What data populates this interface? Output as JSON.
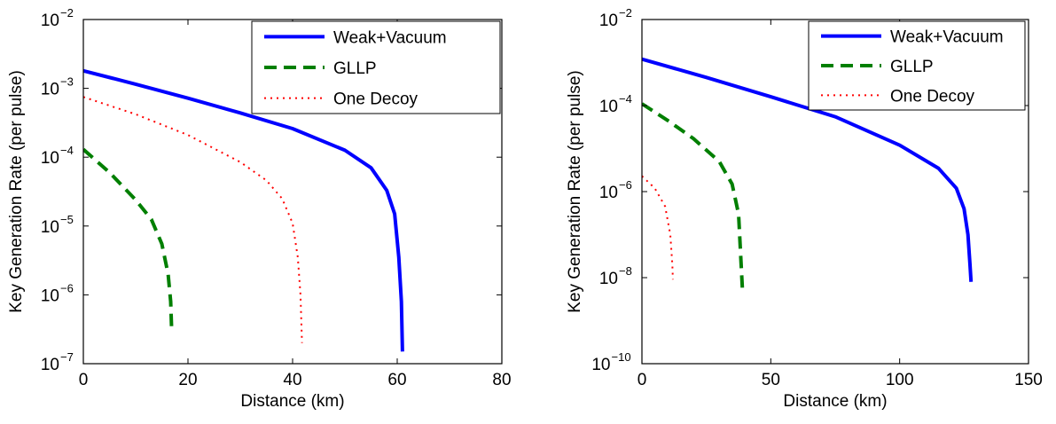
{
  "chart_data": [
    {
      "type": "line",
      "xlabel": "Distance (km)",
      "ylabel": "Key Generation Rate (per pulse)",
      "xlim": [
        0,
        80
      ],
      "ylim": [
        1e-07,
        0.01
      ],
      "yscale": "log",
      "grid": false,
      "legend_placement": "top-right",
      "x_ticks": [
        {
          "value": 0,
          "label": "0"
        },
        {
          "value": 20,
          "label": "20"
        },
        {
          "value": 40,
          "label": "40"
        },
        {
          "value": 60,
          "label": "60"
        },
        {
          "value": 80,
          "label": "80"
        }
      ],
      "y_ticks": [
        {
          "value": 1e-07,
          "base": "10",
          "exp": "−7"
        },
        {
          "value": 1e-06,
          "base": "10",
          "exp": "−6"
        },
        {
          "value": 1e-05,
          "base": "10",
          "exp": "−5"
        },
        {
          "value": 0.0001,
          "base": "10",
          "exp": "−4"
        },
        {
          "value": 0.001,
          "base": "10",
          "exp": "−3"
        },
        {
          "value": 0.01,
          "base": "10",
          "exp": "−2"
        }
      ],
      "series": [
        {
          "name": "Weak+Vacuum",
          "color": "#0000ff",
          "style": "solid",
          "x": [
            0,
            10,
            20,
            30,
            40,
            50,
            55,
            58,
            59.5,
            60.3,
            60.8,
            61
          ],
          "y": [
            0.0018,
            0.00115,
            0.00072,
            0.00044,
            0.00026,
            0.000126,
            7e-05,
            3.3e-05,
            1.5e-05,
            3.5e-06,
            8e-07,
            1.5e-07
          ]
        },
        {
          "name": "GLLP",
          "color": "#007f00",
          "style": "dashed",
          "x": [
            0,
            5,
            10,
            13,
            15,
            16.2,
            16.7,
            16.9
          ],
          "y": [
            0.00013,
            6e-05,
            2.4e-05,
            1.25e-05,
            5.5e-06,
            2e-06,
            8e-07,
            2.8e-07
          ]
        },
        {
          "name": "One Decoy",
          "color": "#ff0000",
          "style": "dotted",
          "x": [
            0,
            10,
            20,
            30,
            35,
            38,
            40,
            41,
            41.5,
            41.8
          ],
          "y": [
            0.00075,
            0.00042,
            0.00021,
            8.5e-05,
            4.6e-05,
            2.5e-05,
            1.1e-05,
            3.5e-06,
            1e-06,
            2e-07
          ]
        }
      ]
    },
    {
      "type": "line",
      "xlabel": "Distance (km)",
      "ylabel": "Key Generation Rate (per pulse)",
      "xlim": [
        0,
        150
      ],
      "ylim": [
        1e-10,
        0.01
      ],
      "yscale": "log",
      "grid": false,
      "legend_placement": "top-right",
      "x_ticks": [
        {
          "value": 0,
          "label": "0"
        },
        {
          "value": 50,
          "label": "50"
        },
        {
          "value": 100,
          "label": "100"
        },
        {
          "value": 150,
          "label": "150"
        }
      ],
      "y_ticks": [
        {
          "value": 1e-10,
          "base": "10",
          "exp": "−10"
        },
        {
          "value": 1e-08,
          "base": "10",
          "exp": "−8"
        },
        {
          "value": 1e-06,
          "base": "10",
          "exp": "−6"
        },
        {
          "value": 0.0001,
          "base": "10",
          "exp": "−4"
        },
        {
          "value": 0.01,
          "base": "10",
          "exp": "−2"
        }
      ],
      "series": [
        {
          "name": "Weak+Vacuum",
          "color": "#0000ff",
          "style": "solid",
          "x": [
            0,
            25,
            50,
            75,
            100,
            115,
            122,
            125,
            126.5,
            127.3,
            127.7
          ],
          "y": [
            0.0012,
            0.00045,
            0.00016,
            5.5e-05,
            1.2e-05,
            3.5e-06,
            1.2e-06,
            4e-07,
            1e-07,
            2e-08,
            8e-09
          ]
        },
        {
          "name": "GLLP",
          "color": "#007f00",
          "style": "dashed",
          "x": [
            0,
            10,
            20,
            30,
            35,
            37.5,
            38.5,
            39
          ],
          "y": [
            0.00011,
            4.5e-05,
            1.7e-05,
            5e-06,
            1.5e-06,
            3e-07,
            2e-08,
            5e-09
          ]
        },
        {
          "name": "One Decoy",
          "color": "#ff0000",
          "style": "dotted",
          "x": [
            0,
            5,
            9,
            11,
            11.8,
            12
          ],
          "y": [
            2.3e-06,
            1.2e-06,
            4.5e-07,
            1e-07,
            2e-08,
            9e-09
          ]
        }
      ]
    }
  ]
}
